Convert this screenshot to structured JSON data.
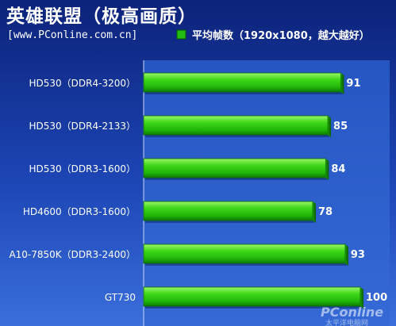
{
  "page": {
    "title": "英雄联盟（极高画质）",
    "source": "[www.PConline.com.cn]"
  },
  "watermark": {
    "text": "PConline",
    "subtext": "太平洋电脑网"
  },
  "colors": {
    "background_top": "#0a1f6e",
    "background_bottom": "#2d5fd0",
    "plot_background": "#2a5ec9",
    "bar_fill": "#33cc11",
    "bar_highlight": "#7cf04a",
    "bar_shadow": "#0d6a02",
    "legend_swatch": "#22bb11",
    "text_light": "#ffffff",
    "text_dark": "#000000"
  },
  "chart_data": {
    "type": "bar",
    "orientation": "horizontal",
    "title": "英雄联盟（极高画质）",
    "categories": [
      "HD530（DDR4-3200）",
      "HD530（DDR4-2133）",
      "HD530（DDR3-1600）",
      "HD4600（DDR3-1600）",
      "A10-7850K（DDR3-2400）",
      "GT730"
    ],
    "series": [
      {
        "name": "平均帧数（1920x1080，越大越好）",
        "values": [
          91,
          85,
          84,
          78,
          93,
          100
        ]
      }
    ],
    "xlim": [
      0,
      110
    ],
    "grid": false,
    "legend_position": "top-right",
    "data_labels": true
  }
}
